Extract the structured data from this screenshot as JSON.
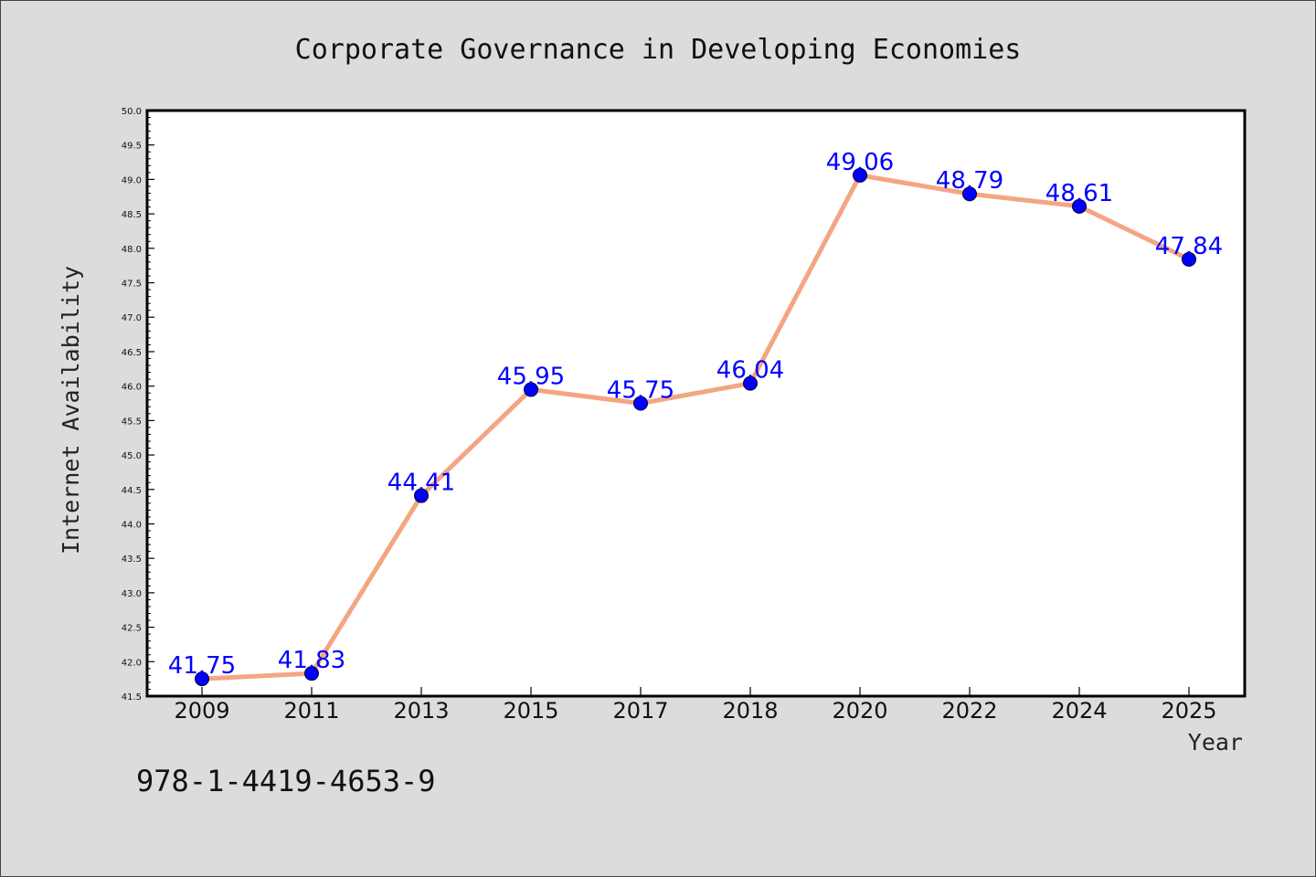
{
  "chart_data": {
    "type": "line",
    "title": "Corporate Governance in Developing Economies",
    "xlabel": "Year",
    "ylabel": "Internet Availability",
    "categories": [
      "2009",
      "2011",
      "2013",
      "2015",
      "2017",
      "2018",
      "2020",
      "2022",
      "2024",
      "2025"
    ],
    "values": [
      41.75,
      41.83,
      44.41,
      45.95,
      45.75,
      46.04,
      49.06,
      48.79,
      48.61,
      47.84
    ],
    "data_labels": [
      "41.75",
      "41.83",
      "44.41",
      "45.95",
      "45.75",
      "46.04",
      "49.06",
      "48.79",
      "48.61",
      "47.84"
    ],
    "ylim": [
      41.5,
      50.0
    ],
    "yticks": [
      "41.5",
      "42.0",
      "42.5",
      "43.0",
      "43.5",
      "44.0",
      "44.5",
      "45.0",
      "45.5",
      "46.0",
      "46.5",
      "47.0",
      "47.5",
      "48.0",
      "48.5",
      "49.0",
      "49.5",
      "50.0"
    ],
    "grid": false,
    "legend": "none",
    "line_color": "#f4a582",
    "marker_color": "#0000ff",
    "label_color": "#0000ff",
    "background_color": "#dcdcdc",
    "plot_background_color": "#ffffff"
  },
  "footer": {
    "isbn": "978-1-4419-4653-9"
  }
}
